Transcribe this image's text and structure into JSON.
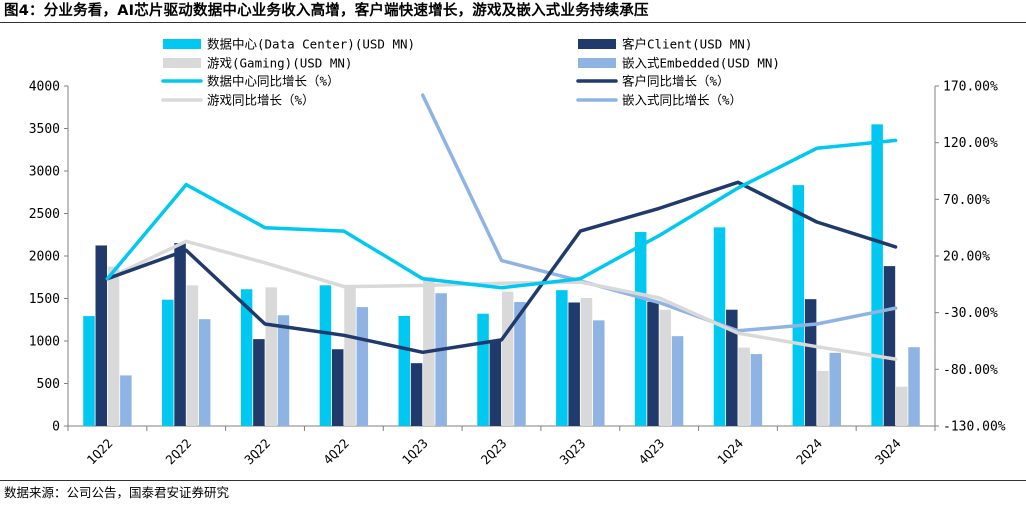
{
  "title": "图4：分业务看，AI芯片驱动数据中心业务收入高增，客户端快速增长，游戏及嵌入式业务持续承压",
  "source": "数据来源：公司公告，国泰君安证券研究",
  "colors": {
    "data_center": "#00c8f0",
    "client": "#1f3a6b",
    "gaming": "#d9d9d9",
    "embedded": "#8fb4e3",
    "axis": "#808080"
  },
  "chart_data": {
    "type": "bar",
    "categories": [
      "1Q22",
      "2Q22",
      "3Q22",
      "4Q22",
      "1Q23",
      "2Q23",
      "3Q23",
      "4Q23",
      "1Q24",
      "2Q24",
      "3Q24"
    ],
    "y_left": {
      "ylim": [
        0,
        4000
      ],
      "ticks": [
        0,
        500,
        1000,
        1500,
        2000,
        2500,
        3000,
        3500,
        4000
      ]
    },
    "y_right": {
      "ylim": [
        -130,
        170
      ],
      "ticks": [
        "-130.00%",
        "-80.00%",
        "-30.00%",
        "20.00%",
        "70.00%",
        "120.00%",
        "170.00%"
      ],
      "tick_values": [
        -130,
        -80,
        -30,
        20,
        70,
        120,
        170
      ]
    },
    "series": [
      {
        "name": "数据中心(Data Center)(USD MN)",
        "kind": "bar",
        "axis": "left",
        "color": "#00c8f0",
        "values": [
          1293,
          1486,
          1609,
          1655,
          1295,
          1321,
          1598,
          2282,
          2337,
          2834,
          3549
        ]
      },
      {
        "name": "客户Client(USD MN)",
        "kind": "bar",
        "axis": "left",
        "color": "#1f3a6b",
        "values": [
          2124,
          2152,
          1022,
          903,
          739,
          998,
          1453,
          1461,
          1368,
          1492,
          1881
        ]
      },
      {
        "name": "游戏(Gaming)(USD MN)",
        "kind": "bar",
        "axis": "left",
        "color": "#d9d9d9",
        "values": [
          1875,
          1655,
          1631,
          1644,
          1757,
          1581,
          1506,
          1368,
          922,
          648,
          462
        ]
      },
      {
        "name": "嵌入式Embedded(USD MN)",
        "kind": "bar",
        "axis": "left",
        "color": "#8fb4e3",
        "values": [
          595,
          1257,
          1303,
          1399,
          1562,
          1459,
          1243,
          1057,
          846,
          861,
          927
        ]
      },
      {
        "name": "数据中心同比增长（%）",
        "kind": "line",
        "axis": "right",
        "color": "#00c8f0",
        "values": [
          0,
          83,
          45,
          42,
          0,
          -8,
          0,
          38,
          80,
          115,
          122
        ]
      },
      {
        "name": "客户同比增长（%）",
        "kind": "line",
        "axis": "right",
        "color": "#1f3a6b",
        "values": [
          0,
          25,
          -40,
          -50,
          -65,
          -54,
          42,
          62,
          85,
          50,
          28
        ]
      },
      {
        "name": "游戏同比增长（%）",
        "kind": "line",
        "axis": "right",
        "color": "#d9d9d9",
        "values": [
          0,
          33,
          14,
          -7,
          -6,
          -4,
          -3,
          -17,
          -48,
          -60,
          -71
        ]
      },
      {
        "name": "嵌入式同比增长（%）",
        "kind": "line",
        "axis": "right",
        "color": "#8fb4e3",
        "values": [
          null,
          null,
          null,
          null,
          162,
          16,
          -2,
          -21,
          -46,
          -40,
          -26
        ]
      }
    ],
    "legend_placement": "top",
    "grid": false
  }
}
